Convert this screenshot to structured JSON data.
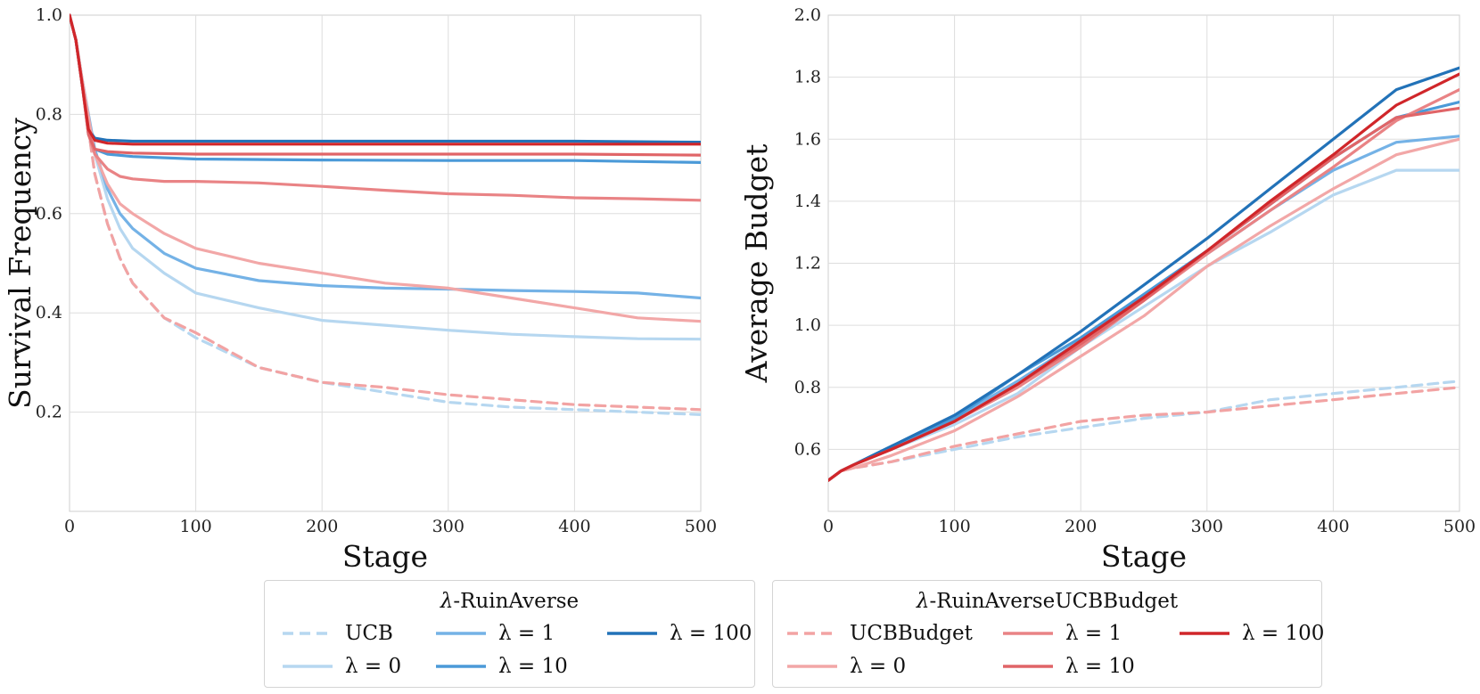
{
  "chart_data": [
    {
      "type": "line",
      "id": "survival",
      "xlabel": "Stage",
      "ylabel": "Survival Frequency",
      "xlim": [
        0,
        500
      ],
      "ylim": [
        0,
        1.0
      ],
      "xticks": [
        "0",
        "100",
        "200",
        "300",
        "400",
        "500"
      ],
      "yticks": [
        "0.2",
        "0.4",
        "0.6",
        "0.8",
        "1.0"
      ],
      "grid": true,
      "series": [
        {
          "name": "UCB",
          "color": "#b6d7f0",
          "dashed": true,
          "x": [
            0,
            5,
            10,
            20,
            30,
            40,
            50,
            75,
            100,
            150,
            200,
            250,
            300,
            350,
            400,
            450,
            500
          ],
          "y": [
            1.0,
            0.95,
            0.86,
            0.68,
            0.58,
            0.51,
            0.46,
            0.39,
            0.35,
            0.29,
            0.26,
            0.24,
            0.22,
            0.21,
            0.205,
            0.2,
            0.195
          ]
        },
        {
          "name": "λ = 0",
          "color": "#b6d7f0",
          "dashed": false,
          "x": [
            0,
            5,
            10,
            20,
            30,
            40,
            50,
            75,
            100,
            150,
            200,
            250,
            300,
            350,
            400,
            450,
            500
          ],
          "y": [
            1.0,
            0.95,
            0.87,
            0.72,
            0.63,
            0.57,
            0.53,
            0.48,
            0.44,
            0.41,
            0.385,
            0.375,
            0.365,
            0.357,
            0.352,
            0.348,
            0.347
          ]
        },
        {
          "name": "λ = 1",
          "color": "#74b2e6",
          "dashed": false,
          "x": [
            0,
            5,
            10,
            20,
            30,
            40,
            50,
            75,
            100,
            150,
            200,
            250,
            300,
            350,
            400,
            450,
            500
          ],
          "y": [
            1.0,
            0.95,
            0.87,
            0.73,
            0.65,
            0.6,
            0.57,
            0.52,
            0.49,
            0.465,
            0.455,
            0.45,
            0.448,
            0.445,
            0.443,
            0.44,
            0.43
          ]
        },
        {
          "name": "λ = 10",
          "color": "#4b9ad8",
          "dashed": false,
          "x": [
            0,
            5,
            10,
            15,
            20,
            30,
            50,
            100,
            200,
            300,
            400,
            500
          ],
          "y": [
            1.0,
            0.95,
            0.86,
            0.76,
            0.73,
            0.72,
            0.715,
            0.71,
            0.708,
            0.707,
            0.707,
            0.703
          ]
        },
        {
          "name": "λ = 100",
          "color": "#2272b8",
          "dashed": false,
          "x": [
            0,
            5,
            10,
            15,
            20,
            30,
            50,
            100,
            200,
            300,
            400,
            500
          ],
          "y": [
            1.0,
            0.95,
            0.86,
            0.77,
            0.752,
            0.748,
            0.746,
            0.746,
            0.746,
            0.746,
            0.746,
            0.744
          ]
        },
        {
          "name": "UCBBudget",
          "color": "#f2a3a3",
          "dashed": true,
          "x": [
            0,
            5,
            10,
            20,
            30,
            40,
            50,
            75,
            100,
            150,
            200,
            250,
            300,
            350,
            400,
            450,
            500
          ],
          "y": [
            1.0,
            0.95,
            0.86,
            0.68,
            0.58,
            0.51,
            0.46,
            0.39,
            0.36,
            0.29,
            0.26,
            0.25,
            0.235,
            0.225,
            0.215,
            0.21,
            0.205
          ]
        },
        {
          "name": "λ = 0",
          "color": "#f2a7a7",
          "dashed": false,
          "x": [
            0,
            5,
            10,
            20,
            30,
            40,
            50,
            75,
            100,
            150,
            200,
            250,
            300,
            350,
            400,
            450,
            500
          ],
          "y": [
            1.0,
            0.95,
            0.87,
            0.72,
            0.66,
            0.62,
            0.6,
            0.56,
            0.53,
            0.5,
            0.48,
            0.46,
            0.45,
            0.43,
            0.41,
            0.39,
            0.383
          ]
        },
        {
          "name": "λ = 1",
          "color": "#e98385",
          "dashed": false,
          "x": [
            0,
            5,
            10,
            15,
            20,
            30,
            40,
            50,
            75,
            100,
            150,
            200,
            250,
            300,
            350,
            400,
            450,
            500
          ],
          "y": [
            1.0,
            0.95,
            0.86,
            0.76,
            0.72,
            0.69,
            0.675,
            0.67,
            0.665,
            0.665,
            0.662,
            0.655,
            0.647,
            0.64,
            0.637,
            0.632,
            0.63,
            0.627
          ]
        },
        {
          "name": "λ = 10",
          "color": "#e06568",
          "dashed": false,
          "x": [
            0,
            5,
            10,
            15,
            20,
            30,
            50,
            100,
            200,
            300,
            400,
            500
          ],
          "y": [
            1.0,
            0.95,
            0.86,
            0.76,
            0.73,
            0.725,
            0.722,
            0.72,
            0.72,
            0.72,
            0.72,
            0.718
          ]
        },
        {
          "name": "λ = 100",
          "color": "#d0262a",
          "dashed": false,
          "x": [
            0,
            5,
            10,
            15,
            20,
            30,
            50,
            100,
            200,
            300,
            400,
            500
          ],
          "y": [
            1.0,
            0.95,
            0.86,
            0.77,
            0.748,
            0.742,
            0.74,
            0.74,
            0.74,
            0.74,
            0.74,
            0.74
          ]
        }
      ]
    },
    {
      "type": "line",
      "id": "budget",
      "xlabel": "Stage",
      "ylabel": "Average Budget",
      "xlim": [
        0,
        500
      ],
      "ylim": [
        0.4,
        2.0
      ],
      "xticks": [
        "0",
        "100",
        "200",
        "300",
        "400",
        "500"
      ],
      "yticks": [
        "0.6",
        "0.8",
        "1.0",
        "1.2",
        "1.4",
        "1.6",
        "1.8",
        "2.0"
      ],
      "grid": true,
      "series": [
        {
          "name": "UCB",
          "color": "#b6d7f0",
          "dashed": true,
          "x": [
            0,
            10,
            20,
            50,
            100,
            150,
            200,
            250,
            300,
            350,
            400,
            450,
            500
          ],
          "y": [
            0.5,
            0.53,
            0.54,
            0.56,
            0.6,
            0.64,
            0.67,
            0.7,
            0.72,
            0.76,
            0.78,
            0.8,
            0.82
          ]
        },
        {
          "name": "λ = 0",
          "color": "#b6d7f0",
          "dashed": false,
          "x": [
            0,
            10,
            20,
            50,
            100,
            150,
            200,
            250,
            300,
            350,
            400,
            450,
            500
          ],
          "y": [
            0.5,
            0.53,
            0.55,
            0.6,
            0.68,
            0.78,
            0.93,
            1.06,
            1.19,
            1.3,
            1.42,
            1.5,
            1.5
          ]
        },
        {
          "name": "λ = 1",
          "color": "#74b2e6",
          "dashed": false,
          "x": [
            0,
            10,
            20,
            50,
            100,
            150,
            200,
            250,
            300,
            350,
            400,
            450,
            500
          ],
          "y": [
            0.5,
            0.53,
            0.55,
            0.61,
            0.7,
            0.82,
            0.95,
            1.09,
            1.23,
            1.37,
            1.5,
            1.59,
            1.61
          ]
        },
        {
          "name": "λ = 10",
          "color": "#4b9ad8",
          "dashed": false,
          "x": [
            0,
            10,
            20,
            50,
            100,
            150,
            200,
            250,
            300,
            350,
            400,
            450,
            500
          ],
          "y": [
            0.5,
            0.53,
            0.55,
            0.61,
            0.7,
            0.84,
            0.96,
            1.1,
            1.24,
            1.39,
            1.54,
            1.67,
            1.72
          ]
        },
        {
          "name": "λ = 100",
          "color": "#2272b8",
          "dashed": false,
          "x": [
            0,
            10,
            20,
            50,
            100,
            150,
            200,
            250,
            300,
            350,
            400,
            450,
            500
          ],
          "y": [
            0.5,
            0.53,
            0.55,
            0.61,
            0.71,
            0.84,
            0.98,
            1.13,
            1.28,
            1.44,
            1.6,
            1.76,
            1.83
          ]
        },
        {
          "name": "UCBBudget",
          "color": "#f2a3a3",
          "dashed": true,
          "x": [
            0,
            10,
            20,
            50,
            100,
            150,
            200,
            250,
            300,
            350,
            400,
            450,
            500
          ],
          "y": [
            0.5,
            0.53,
            0.54,
            0.56,
            0.61,
            0.65,
            0.69,
            0.71,
            0.72,
            0.74,
            0.76,
            0.78,
            0.8
          ]
        },
        {
          "name": "λ = 0",
          "color": "#f2a7a7",
          "dashed": false,
          "x": [
            0,
            10,
            20,
            50,
            100,
            150,
            200,
            250,
            300,
            350,
            400,
            450,
            500
          ],
          "y": [
            0.5,
            0.53,
            0.54,
            0.58,
            0.66,
            0.77,
            0.9,
            1.03,
            1.19,
            1.32,
            1.44,
            1.55,
            1.6
          ]
        },
        {
          "name": "λ = 1",
          "color": "#e98385",
          "dashed": false,
          "x": [
            0,
            10,
            20,
            50,
            100,
            150,
            200,
            250,
            300,
            350,
            400,
            450,
            500
          ],
          "y": [
            0.5,
            0.53,
            0.55,
            0.6,
            0.69,
            0.8,
            0.93,
            1.08,
            1.23,
            1.37,
            1.51,
            1.66,
            1.76
          ]
        },
        {
          "name": "λ = 10",
          "color": "#e06568",
          "dashed": false,
          "x": [
            0,
            10,
            20,
            50,
            100,
            150,
            200,
            250,
            300,
            350,
            400,
            450,
            500
          ],
          "y": [
            0.5,
            0.53,
            0.55,
            0.6,
            0.69,
            0.81,
            0.94,
            1.08,
            1.24,
            1.39,
            1.54,
            1.67,
            1.7
          ]
        },
        {
          "name": "λ = 100",
          "color": "#d0262a",
          "dashed": false,
          "x": [
            0,
            10,
            20,
            50,
            100,
            150,
            200,
            250,
            300,
            350,
            400,
            450,
            500
          ],
          "y": [
            0.5,
            0.53,
            0.55,
            0.6,
            0.69,
            0.81,
            0.95,
            1.09,
            1.24,
            1.4,
            1.55,
            1.71,
            1.81
          ]
        }
      ]
    }
  ],
  "legends": [
    {
      "title_symbol": "λ",
      "title_text": "-RuinAverse",
      "items": [
        {
          "label": "UCB",
          "color": "#b6d7f0",
          "dashed": true
        },
        {
          "label": "λ = 0",
          "color": "#b6d7f0",
          "dashed": false
        },
        {
          "label": "λ = 1",
          "color": "#74b2e6",
          "dashed": false
        },
        {
          "label": "λ = 10",
          "color": "#4b9ad8",
          "dashed": false
        },
        {
          "label": "λ = 100",
          "color": "#2272b8",
          "dashed": false
        }
      ]
    },
    {
      "title_symbol": "λ",
      "title_text": "-RuinAverseUCBBudget",
      "items": [
        {
          "label": "UCBBudget",
          "color": "#f2a3a3",
          "dashed": true
        },
        {
          "label": "λ = 0",
          "color": "#f2a7a7",
          "dashed": false
        },
        {
          "label": "λ = 1",
          "color": "#e98385",
          "dashed": false
        },
        {
          "label": "λ = 10",
          "color": "#e06568",
          "dashed": false
        },
        {
          "label": "λ = 100",
          "color": "#d0262a",
          "dashed": false
        }
      ]
    }
  ]
}
